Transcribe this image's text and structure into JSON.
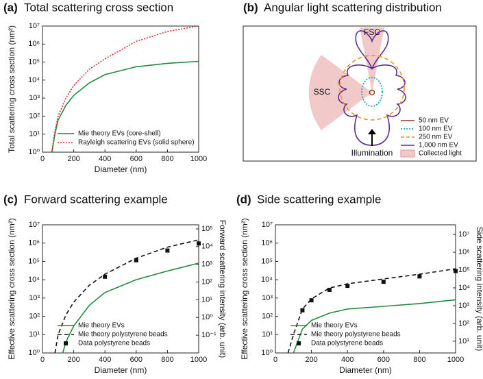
{
  "chart_data": [
    {
      "type": "line",
      "label": "(a)",
      "title": "Total scattering cross section",
      "xlabel": "Diameter (nm)",
      "ylabel": "Total scattering cross section (nm²)",
      "xlim": [
        0,
        1000
      ],
      "xticks": [
        0,
        200,
        400,
        600,
        800,
        1000
      ],
      "log_y": true,
      "ylim": [
        1,
        10000000
      ],
      "yticks": [
        {
          "value": 1,
          "label": "10⁰"
        },
        {
          "value": 10,
          "label": "10¹"
        },
        {
          "value": 100,
          "label": "10²"
        },
        {
          "value": 1000,
          "label": "10³"
        },
        {
          "value": 10000,
          "label": "10⁴"
        },
        {
          "value": 100000,
          "label": "10⁵"
        },
        {
          "value": 1000000,
          "label": "10⁶"
        },
        {
          "value": 10000000,
          "label": "10⁷"
        }
      ],
      "legend": "lower center",
      "series": [
        {
          "name": "Mie theory EVs (core-shell)",
          "color": "#1f8a3c",
          "linestyle": "solid",
          "x": [
            60,
            80,
            100,
            150,
            200,
            300,
            400,
            600,
            800,
            1000
          ],
          "values": [
            1,
            10,
            60,
            400,
            1400,
            7000,
            20000,
            55000,
            85000,
            110000
          ]
        },
        {
          "name": "Rayleigh scattering EVs (solid sphere)",
          "color": "#e0262e",
          "linestyle": "dotted",
          "x": [
            60,
            80,
            100,
            150,
            200,
            300,
            400,
            600,
            800,
            1000
          ],
          "values": [
            1,
            15,
            100,
            1000,
            5000,
            40000,
            150000,
            1400000,
            5000000,
            10000000
          ]
        }
      ]
    },
    {
      "type": "polar-diagram",
      "label": "(b)",
      "title": "Angular light scattering distribution",
      "annotations": [
        "FSC",
        "SSC",
        "Illumination"
      ],
      "series": [
        {
          "name": "50 nm EV",
          "color": "#8b3a1a",
          "linestyle": "solid"
        },
        {
          "name": "100 nm EV",
          "color": "#1aa8b0",
          "linestyle": "dotted"
        },
        {
          "name": "250 nm EV",
          "color": "#f0902a",
          "linestyle": "dashed"
        },
        {
          "name": "1,000 nm EV",
          "color": "#5a2d91",
          "linestyle": "solid"
        },
        {
          "name": "Collected light",
          "color": "#f2c9c9",
          "linestyle": "area"
        }
      ]
    },
    {
      "type": "line",
      "label": "(c)",
      "title": "Forward scattering example",
      "xlabel": "Diameter (nm)",
      "ylabel": "Effective scattering cross section (nm²)",
      "y2label": "Forward scattering intensity (arb. unit)",
      "xlim": [
        0,
        1000
      ],
      "xticks": [
        0,
        200,
        400,
        600,
        800,
        1000
      ],
      "log_y": true,
      "ylim": [
        1,
        10000000
      ],
      "yticks": [
        {
          "value": 1,
          "label": "10⁰"
        },
        {
          "value": 10,
          "label": "10¹"
        },
        {
          "value": 100,
          "label": "10²"
        },
        {
          "value": 1000,
          "label": "10³"
        },
        {
          "value": 10000,
          "label": "10⁴"
        },
        {
          "value": 100000,
          "label": "10⁵"
        },
        {
          "value": 1000000,
          "label": "10⁶"
        },
        {
          "value": 10000000,
          "label": "10⁷"
        }
      ],
      "y2lim": [
        0.01,
        170000
      ],
      "y2ticks": [
        {
          "value": 0.1,
          "label": "10⁻¹"
        },
        {
          "value": 1,
          "label": "10⁰"
        },
        {
          "value": 10,
          "label": "10¹"
        },
        {
          "value": 100,
          "label": "10²"
        },
        {
          "value": 1000,
          "label": "10³"
        },
        {
          "value": 10000,
          "label": "10⁴"
        },
        {
          "value": 100000,
          "label": "10⁵"
        }
      ],
      "legend": "lower center",
      "series": [
        {
          "name": "Mie theory EVs",
          "color": "#1f8a3c",
          "linestyle": "solid",
          "x": [
            130,
            150,
            200,
            300,
            400,
            600,
            800,
            1000
          ],
          "values": [
            1,
            4,
            30,
            400,
            2000,
            10000,
            30000,
            80000
          ]
        },
        {
          "name": "Mie theory polystyrene beads",
          "color": "#111111",
          "linestyle": "dashed",
          "x": [
            80,
            100,
            150,
            200,
            300,
            400,
            600,
            800,
            1000
          ],
          "values": [
            1,
            10,
            120,
            600,
            5000,
            20000,
            150000,
            600000,
            1500000
          ]
        },
        {
          "name": "Data polystyrene beads",
          "color": "#111111",
          "linestyle": "markers",
          "axis": "y2",
          "x": [
            400,
            600,
            800,
            1000
          ],
          "values": [
            200,
            1700,
            6000,
            15000
          ]
        }
      ]
    },
    {
      "type": "line",
      "label": "(d)",
      "title": "Side scattering example",
      "xlabel": "Diameter (nm)",
      "ylabel": "Effective scattering cross section (nm²)",
      "y2label": "Side scattering intensity (arb. unit)",
      "xlim": [
        0,
        1000
      ],
      "xticks": [
        0,
        200,
        400,
        600,
        800,
        1000
      ],
      "log_y": true,
      "ylim": [
        1,
        10000000
      ],
      "yticks": [
        {
          "value": 1,
          "label": "10⁰"
        },
        {
          "value": 10,
          "label": "10¹"
        },
        {
          "value": 100,
          "label": "10²"
        },
        {
          "value": 1000,
          "label": "10³"
        },
        {
          "value": 10000,
          "label": "10⁴"
        },
        {
          "value": 100000,
          "label": "10⁵"
        },
        {
          "value": 1000000,
          "label": "10⁶"
        },
        {
          "value": 10000000,
          "label": "10⁷"
        }
      ],
      "y2lim": [
        2.2,
        35000000
      ],
      "y2ticks": [
        {
          "value": 10,
          "label": "10¹"
        },
        {
          "value": 100,
          "label": "10²"
        },
        {
          "value": 1000,
          "label": "10³"
        },
        {
          "value": 10000,
          "label": "10⁴"
        },
        {
          "value": 100000,
          "label": "10⁵"
        },
        {
          "value": 1000000,
          "label": "10⁶"
        },
        {
          "value": 10000000,
          "label": "10⁷"
        }
      ],
      "legend": "lower center",
      "series": [
        {
          "name": "Mie theory EVs",
          "color": "#1f8a3c",
          "linestyle": "solid",
          "x": [
            100,
            150,
            200,
            300,
            400,
            600,
            800,
            1000
          ],
          "values": [
            1,
            20,
            60,
            150,
            250,
            350,
            500,
            800
          ]
        },
        {
          "name": "Mie theory polystyrene beads",
          "color": "#111111",
          "linestyle": "dashed",
          "x": [
            70,
            100,
            150,
            200,
            300,
            400,
            600,
            800,
            1000
          ],
          "values": [
            1,
            10,
            250,
            900,
            3500,
            6000,
            11000,
            20000,
            40000
          ]
        },
        {
          "name": "Data polystyrene beads",
          "color": "#111111",
          "linestyle": "markers",
          "axis": "y2",
          "x": [
            150,
            200,
            300,
            400,
            600,
            800,
            1000
          ],
          "values": [
            550,
            2000,
            7700,
            13000,
            22000,
            44000,
            88000
          ]
        }
      ]
    }
  ]
}
